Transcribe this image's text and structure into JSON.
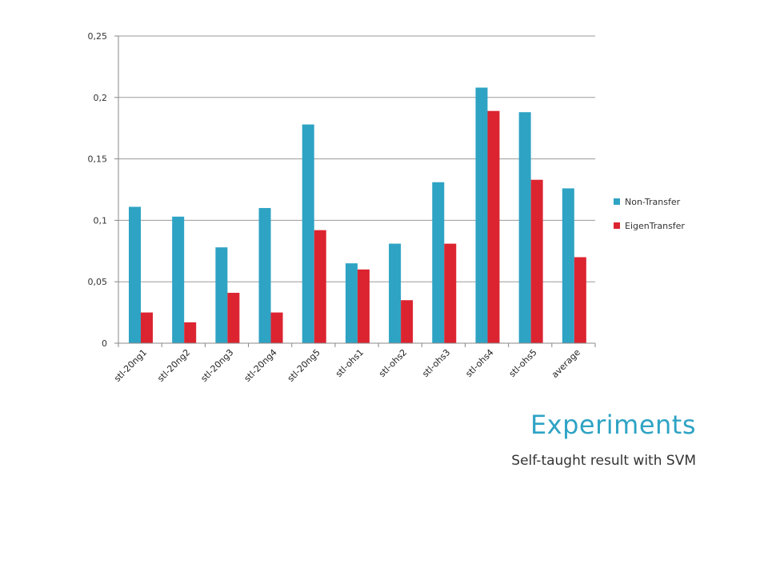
{
  "slide": {
    "title": "Experiments",
    "subtitle": "Self-taught result with SVM"
  },
  "colors": {
    "non_transfer": "#2ea3c4",
    "eigen_transfer": "#dc2431",
    "title": "#2ea3c4",
    "grid": "#999999"
  },
  "chart_data": {
    "type": "bar",
    "title": "",
    "xlabel": "",
    "ylabel": "",
    "categories": [
      "stl-20ng1",
      "stl-20ng2",
      "stl-20ng3",
      "stl-20ng4",
      "stl-20ng5",
      "stl-ohs1",
      "stl-ohs2",
      "stl-ohs3",
      "stl-ohs4",
      "stl-ohs5",
      "average"
    ],
    "series": [
      {
        "name": "Non-Transfer",
        "color": "#2ea3c4",
        "values": [
          0.111,
          0.103,
          0.078,
          0.11,
          0.178,
          0.065,
          0.081,
          0.131,
          0.208,
          0.188,
          0.126
        ]
      },
      {
        "name": "EigenTransfer",
        "color": "#dc2431",
        "values": [
          0.025,
          0.017,
          0.041,
          0.025,
          0.092,
          0.06,
          0.035,
          0.081,
          0.189,
          0.133,
          0.07
        ]
      }
    ],
    "ylim": [
      0,
      0.25
    ],
    "yticks": [
      0,
      0.05,
      0.1,
      0.15,
      0.2,
      0.25
    ],
    "ytick_labels": [
      "0",
      "0,05",
      "0,1",
      "0,15",
      "0,2",
      "0,25"
    ],
    "grid": true,
    "legend_position": "right"
  }
}
